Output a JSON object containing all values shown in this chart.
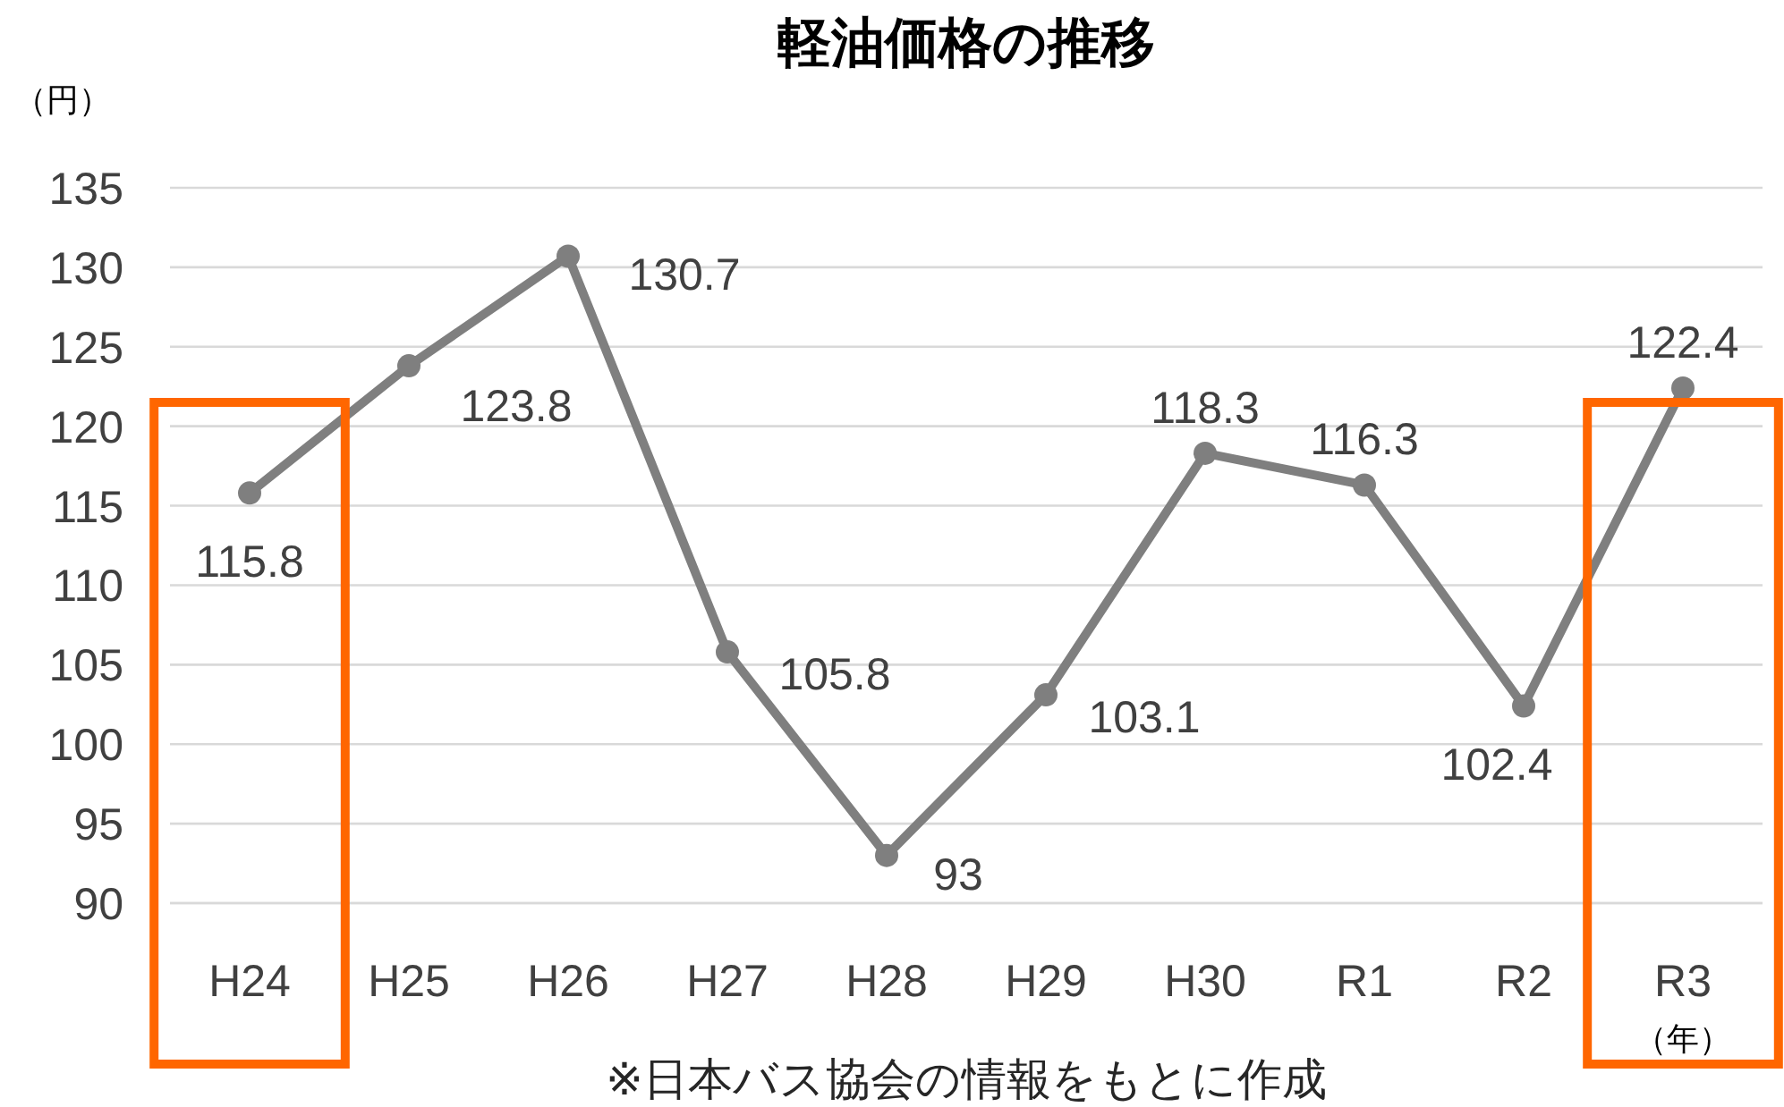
{
  "chart_data": {
    "type": "line",
    "title": "軽油価格の推移",
    "ylabel": "（円）",
    "xlabel": "（年）",
    "categories": [
      "H24",
      "H25",
      "H26",
      "H27",
      "H28",
      "H29",
      "H30",
      "R1",
      "R2",
      "R3"
    ],
    "series": [
      {
        "color": "#7f7f7f",
        "values": [
          115.8,
          123.8,
          130.7,
          105.8,
          93,
          103.1,
          118.3,
          116.3,
          102.4,
          122.4
        ],
        "value_labels": [
          "115.8",
          "123.8",
          "130.7",
          "105.8",
          "93",
          "103.1",
          "118.3",
          "116.3",
          "102.4",
          "122.4"
        ]
      }
    ],
    "ylim": [
      90,
      135
    ],
    "yticks": [
      90,
      95,
      100,
      105,
      110,
      115,
      120,
      125,
      130,
      135
    ],
    "grid": "y",
    "marker": "circle",
    "line_style": "solid",
    "annotations": [
      "※日本バス協会の情報をもとに作成"
    ]
  }
}
